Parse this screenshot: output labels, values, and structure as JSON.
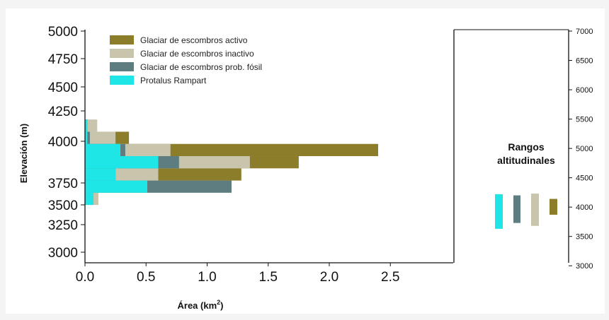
{
  "chart_data": {
    "type": "bar",
    "orientation": "horizontal",
    "stacking": "overlapping",
    "xlabel": "Área (km",
    "xlabel_sup": "2",
    "xlabel_close": ")",
    "ylabel": "Elevación (m)",
    "xlim": [
      0,
      2.8
    ],
    "ylim": [
      2950,
      5000
    ],
    "x_ticks": [
      "0.0",
      "0.5",
      "1.0",
      "1.5",
      "2.0",
      "2.5"
    ],
    "y_ticks": [
      "5000",
      "4750",
      "4500",
      "4250",
      "4000",
      "3750",
      "3500",
      "3250",
      "3000"
    ],
    "y2_ticks": [
      "7000",
      "6500",
      "6000",
      "5500",
      "5000",
      "4500",
      "4000",
      "3500",
      "3000"
    ],
    "y2lim": [
      2750,
      7000
    ],
    "bin_height": 110,
    "legend_position": "top-left",
    "series": [
      {
        "name": "Glaciar de escombros activo",
        "color": "#8c7d2a",
        "bars": [
          {
            "y": 4040,
            "value": 0.36
          },
          {
            "y": 3930,
            "value": 2.4
          },
          {
            "y": 3820,
            "value": 1.75
          },
          {
            "y": 3710,
            "value": 1.28
          }
        ]
      },
      {
        "name": "Glaciar de escombros inactivo",
        "color": "#c9c5ad",
        "bars": [
          {
            "y": 4150,
            "value": 0.1
          },
          {
            "y": 4040,
            "value": 0.25
          },
          {
            "y": 3930,
            "value": 0.7
          },
          {
            "y": 3820,
            "value": 1.35
          },
          {
            "y": 3710,
            "value": 0.6
          },
          {
            "y": 3490,
            "value": 0.11
          }
        ]
      },
      {
        "name": "Glaciar de escombros prob. fósil",
        "color": "#5e7d80",
        "bars": [
          {
            "y": 4150,
            "value": 0.02
          },
          {
            "y": 4040,
            "value": 0.04
          },
          {
            "y": 3930,
            "value": 0.33
          },
          {
            "y": 3820,
            "value": 0.77
          },
          {
            "y": 3710,
            "value": 0.25
          },
          {
            "y": 3600,
            "value": 1.2
          }
        ]
      },
      {
        "name": "Protalus Rampart",
        "color": "#1ee6e6",
        "bars": [
          {
            "y": 4150,
            "value": 0.02
          },
          {
            "y": 4040,
            "value": 0.02
          },
          {
            "y": 3930,
            "value": 0.29
          },
          {
            "y": 3820,
            "value": 0.6
          },
          {
            "y": 3710,
            "value": 0.25
          },
          {
            "y": 3600,
            "value": 0.51
          },
          {
            "y": 3490,
            "value": 0.07
          }
        ]
      }
    ],
    "ranges": {
      "title_line1": "Rangos",
      "title_line2": "altitudinales",
      "items": [
        {
          "series": "Protalus Rampart",
          "color": "#1ee6e6",
          "min": 3630,
          "max": 4220
        },
        {
          "series": "Glaciar de escombros prob. fósil",
          "color": "#5e7d80",
          "min": 3730,
          "max": 4200
        },
        {
          "series": "Glaciar de escombros inactivo",
          "color": "#c9c5ad",
          "min": 3680,
          "max": 4230
        },
        {
          "series": "Glaciar de escombros activo",
          "color": "#8c7d2a",
          "min": 3870,
          "max": 4140
        }
      ]
    }
  }
}
